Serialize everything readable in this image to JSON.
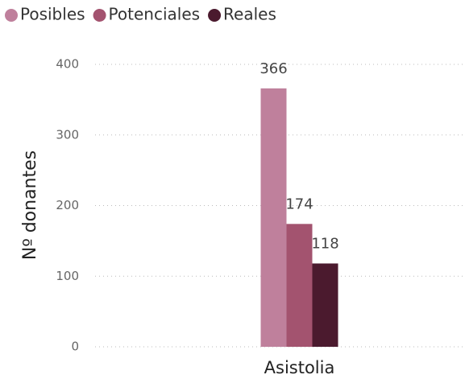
{
  "chart_data": {
    "type": "bar",
    "y_label": "Nº donantes",
    "categories": [
      "Asistolia"
    ],
    "series": [
      {
        "name": "Posibles",
        "color": "#bf809c",
        "values": [
          366
        ]
      },
      {
        "name": "Potenciales",
        "color": "#a3536f",
        "values": [
          174
        ]
      },
      {
        "name": "Reales",
        "color": "#4b1a2e",
        "values": [
          118
        ]
      }
    ],
    "ylim": [
      0,
      400
    ],
    "yticks": [
      0,
      100,
      200,
      300,
      400
    ],
    "grid": true,
    "legend": "top-left"
  }
}
